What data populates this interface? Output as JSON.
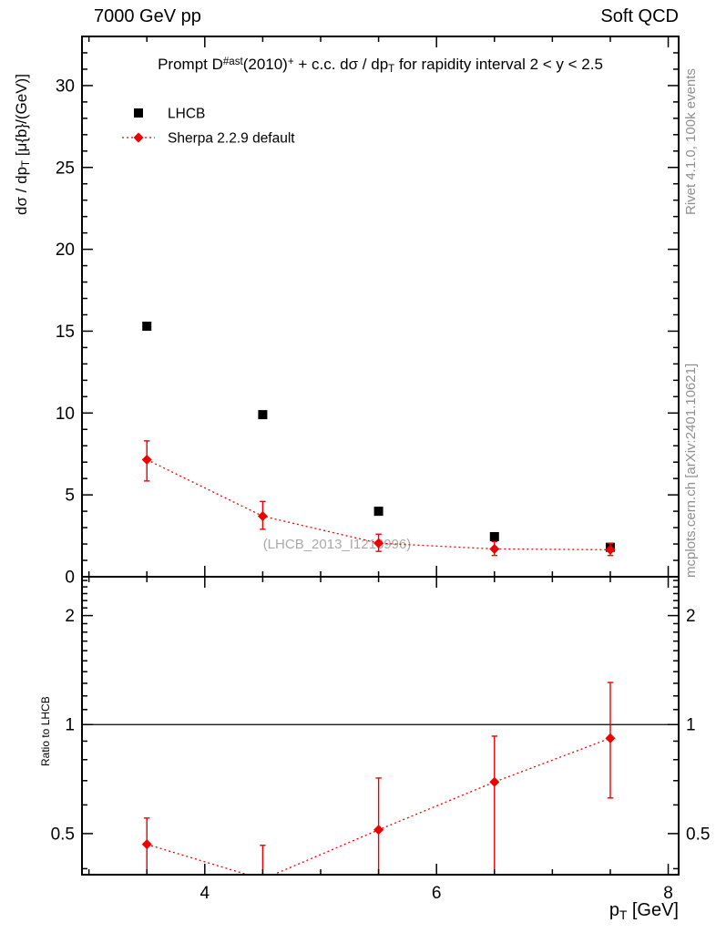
{
  "header": {
    "left": "7000 GeV pp",
    "right": "Soft QCD"
  },
  "side_notes": {
    "top_right": "Rivet 4.1.0,  100k events",
    "bottom_right": "mcplots.cern.ch [arXiv:2401.10621]"
  },
  "watermark": "(LHCB_2013_I1218996)",
  "colors": {
    "accent": "#ee0000",
    "muted_text": "#8f8f8f",
    "watermark_text": "#a9a9a9",
    "axis": "#000000"
  },
  "chart_data": {
    "type": "scatter",
    "title_plain": "Prompt D#ast(2010)+ + c.c.  dσ / dpT for rapidity interval 2 < y < 2.5",
    "title_segments": [
      {
        "t": "Prompt D"
      },
      {
        "t": "#ast",
        "sup": true
      },
      {
        "t": "(2010)"
      },
      {
        "t": "+",
        "sup": true
      },
      {
        "t": " + c.c.  dσ / dp"
      },
      {
        "t": "T",
        "sub": true
      },
      {
        "t": " for rapidity interval 2 < y < 2.5"
      }
    ],
    "ylabel_plain": "dσ / dpT [μ{b}/(GeV)]",
    "ylabel_segments": [
      {
        "t": "dσ / dp"
      },
      {
        "t": "T",
        "sub": true
      },
      {
        "t": " [μ{b}/(GeV)]"
      }
    ],
    "xlabel_plain": "pT [GeV]",
    "xlabel_segments": [
      {
        "t": "p"
      },
      {
        "t": "T",
        "sub": true
      },
      {
        "t": " [GeV]"
      }
    ],
    "ratio_label": "Ratio to LHCB",
    "x": [
      3.5,
      4.5,
      5.5,
      6.5,
      7.5
    ],
    "xlim": [
      2.94,
      8.09
    ],
    "x_major_ticks": [
      4,
      6,
      8
    ],
    "x_minor_step": 0.5,
    "main_panel": {
      "ylim": [
        0,
        33
      ],
      "y_major_ticks": [
        0,
        5,
        10,
        15,
        20,
        25,
        30
      ],
      "y_minor_step": 1,
      "series": [
        {
          "name": "LHCB",
          "marker": "square",
          "color": "#000000",
          "values": [
            15.3,
            9.9,
            4.0,
            2.45,
            1.8
          ]
        },
        {
          "name": "Sherpa 2.2.9 default",
          "marker": "diamond",
          "color": "#ee0000",
          "line": "dotted",
          "values": [
            7.15,
            3.7,
            2.05,
            1.7,
            1.65
          ],
          "err_lo": [
            1.3,
            0.8,
            0.5,
            0.4,
            0.35
          ],
          "err_hi": [
            1.15,
            0.9,
            0.55,
            0.45,
            0.4
          ]
        }
      ]
    },
    "ratio_panel": {
      "scale": "log",
      "ylim": [
        0.385,
        2.56
      ],
      "y_major_ticks": [
        0.5,
        1,
        2
      ],
      "reference_line": 1,
      "series": {
        "name": "Sherpa 2.2.9 default / LHCB",
        "marker": "diamond",
        "color": "#ee0000",
        "line": "dotted",
        "values": [
          0.467,
          0.374,
          0.512,
          0.694,
          0.917
        ],
        "err_lo": [
          0.095,
          0.08,
          0.13,
          0.33,
          0.29
        ],
        "err_hi": [
          0.085,
          0.09,
          0.2,
          0.235,
          0.39
        ]
      }
    },
    "legend": [
      {
        "label": "LHCB",
        "marker": "square",
        "color": "#000000"
      },
      {
        "label": "Sherpa 2.2.9 default",
        "marker": "diamond",
        "color": "#ee0000",
        "line": "dotted"
      }
    ]
  }
}
